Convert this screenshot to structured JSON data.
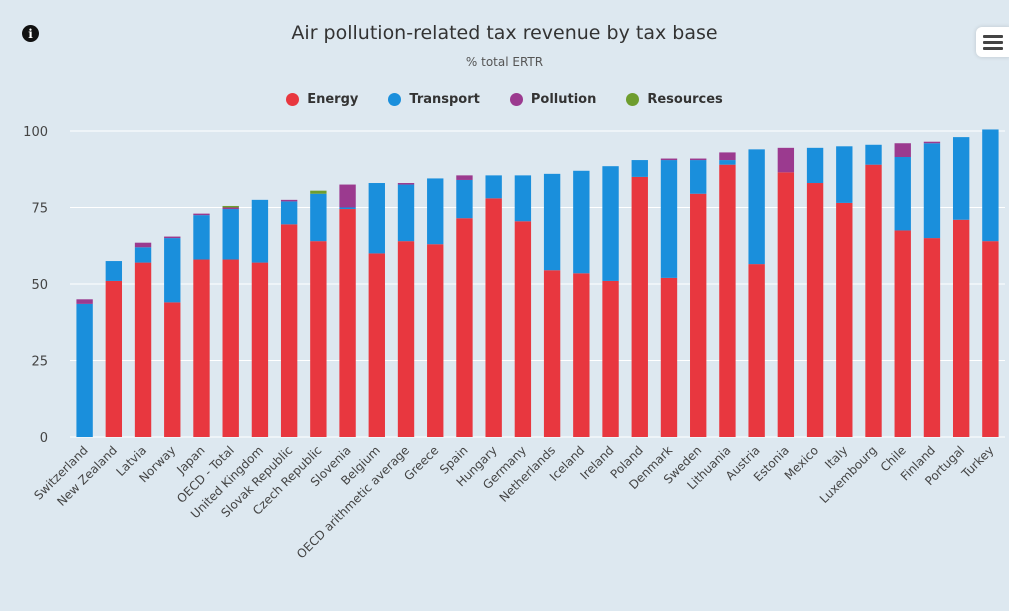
{
  "header": {
    "title": "Air pollution-related tax revenue by tax base",
    "subtitle": "% total ERTR",
    "info_icon": "info-icon",
    "menu_icon": "hamburger-menu-icon"
  },
  "colors": {
    "Energy": "#e8373f",
    "Transport": "#1a8fdc",
    "Pollution": "#9b3a8f",
    "Resources": "#6e9d2e",
    "background": "#dde8f0",
    "grid": "#ffffff"
  },
  "legend": [
    "Energy",
    "Transport",
    "Pollution",
    "Resources"
  ],
  "chart_data": {
    "type": "bar",
    "stacked": true,
    "title": "Air pollution-related tax revenue by tax base",
    "subtitle": "% total ERTR",
    "xlabel": "",
    "ylabel": "",
    "ylim": [
      0,
      100
    ],
    "yticks": [
      0,
      25,
      50,
      75,
      100
    ],
    "grid": true,
    "legend_position": "top-center",
    "categories": [
      "Switzerland",
      "New Zealand",
      "Latvia",
      "Norway",
      "Japan",
      "OECD - Total",
      "United Kingdom",
      "Slovak Republic",
      "Czech Republic",
      "Slovenia",
      "Belgium",
      "OECD arithmetic average",
      "Greece",
      "Spain",
      "Hungary",
      "Germany",
      "Netherlands",
      "Iceland",
      "Ireland",
      "Poland",
      "Denmark",
      "Sweden",
      "Lithuania",
      "Austria",
      "Estonia",
      "Mexico",
      "Italy",
      "Luxembourg",
      "Chile",
      "Finland",
      "Portugal",
      "Turkey"
    ],
    "series": [
      {
        "name": "Energy",
        "values": [
          0,
          51,
          57,
          44,
          58,
          58,
          57,
          69.5,
          64,
          74.5,
          60,
          64,
          63,
          71.5,
          78,
          70.5,
          54.5,
          53.5,
          51,
          85,
          52,
          79.5,
          89,
          56.5,
          86.5,
          83,
          76.5,
          89,
          67.5,
          65,
          71,
          64
        ]
      },
      {
        "name": "Transport",
        "values": [
          43.5,
          6.5,
          5,
          21,
          14.5,
          16.5,
          20.5,
          7.5,
          15.5,
          0.5,
          23,
          18.5,
          21.5,
          12.5,
          7.5,
          15,
          31.5,
          33.5,
          37.5,
          5.5,
          38.5,
          11,
          1.5,
          37.5,
          0,
          11.5,
          18.5,
          6.5,
          24,
          31,
          27,
          36.5
        ]
      },
      {
        "name": "Pollution",
        "values": [
          1.5,
          0,
          1.5,
          0.5,
          0.5,
          0.5,
          0,
          0.5,
          0,
          7.5,
          0,
          0.5,
          0,
          1.5,
          0,
          0,
          0,
          0,
          0,
          0,
          0.5,
          0.5,
          2.5,
          0,
          8,
          0,
          0,
          0,
          4.5,
          0.5,
          0,
          0
        ]
      },
      {
        "name": "Resources",
        "values": [
          0,
          0,
          0,
          0,
          0,
          0.5,
          0,
          0,
          1,
          0,
          0,
          0,
          0,
          0,
          0,
          0,
          0,
          0,
          0,
          0,
          0,
          0,
          0,
          0,
          0,
          0,
          0,
          0,
          0,
          0,
          0,
          0
        ]
      }
    ]
  }
}
